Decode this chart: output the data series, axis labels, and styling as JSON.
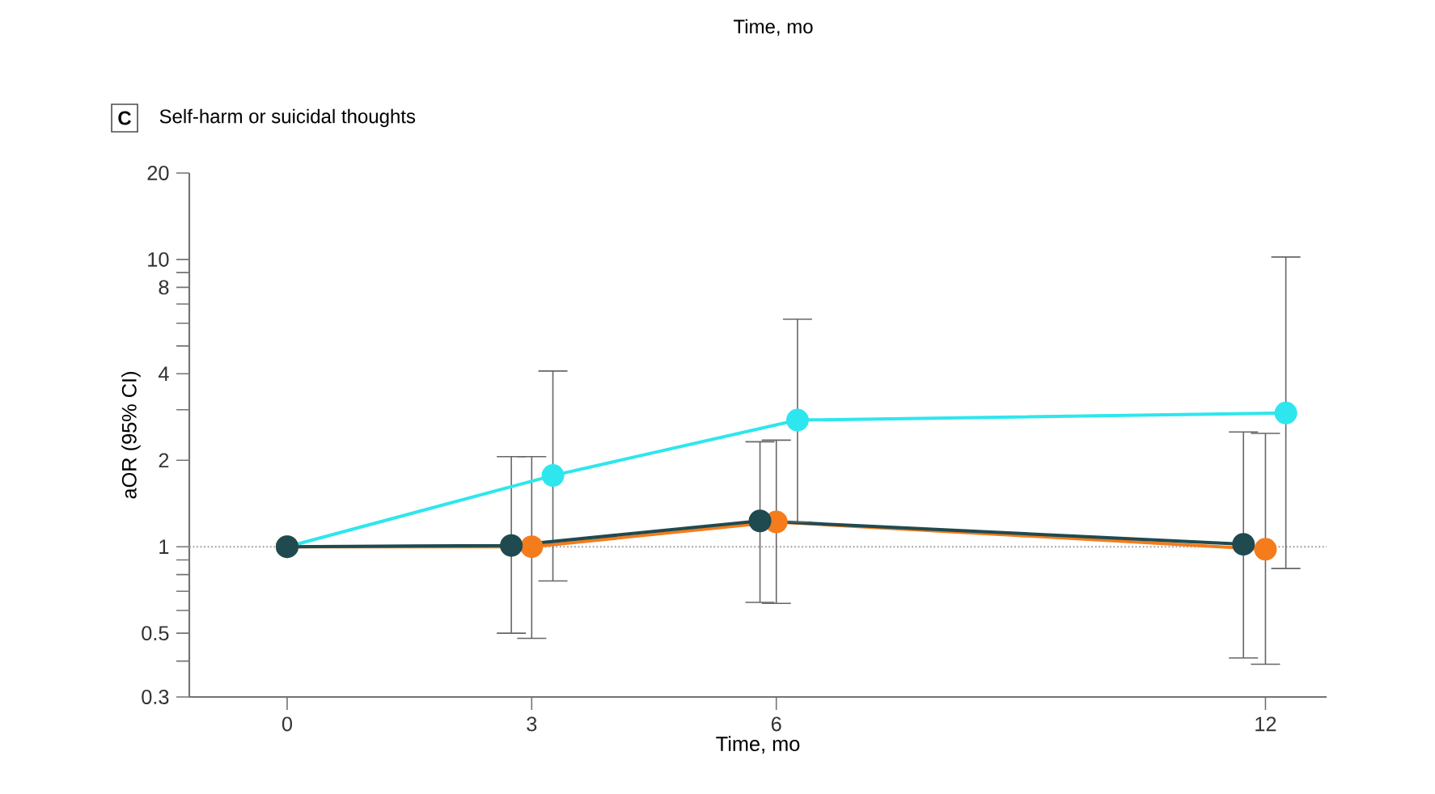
{
  "chart_data": {
    "type": "line",
    "title": "Self-harm or suicidal thoughts",
    "xlabel": "Time, mo",
    "ylabel": "aOR (95% CI)",
    "annotations": [
      "Time, mo",
      "C"
    ],
    "log": "y",
    "marker": "circle",
    "line_style": "solid",
    "xlim": [
      -1.2,
      12.75
    ],
    "xticks": [
      0,
      3,
      6,
      12
    ],
    "ylim": [
      0.3,
      20
    ],
    "yticks": [
      0.3,
      {
        "value": 0.4,
        "label": null
      },
      0.5,
      {
        "value": 0.6,
        "label": null
      },
      {
        "value": 0.7,
        "label": null
      },
      {
        "value": 0.8,
        "label": null
      },
      {
        "value": 0.9,
        "label": null
      },
      1,
      2,
      {
        "value": 3,
        "label": null
      },
      4,
      {
        "value": 5,
        "label": null
      },
      {
        "value": 6,
        "label": null
      },
      {
        "value": 7,
        "label": null
      },
      8,
      {
        "value": 9,
        "label": null
      },
      10,
      20
    ],
    "ref_lines": [
      {
        "axis": "y",
        "value": 1,
        "color": "#a0a0a0",
        "line_style": "dotted"
      }
    ],
    "series": [
      {
        "color": "#2ee6ee",
        "x": [
          0,
          3.26,
          6.26,
          12.25
        ],
        "values": [
          1,
          1.77,
          2.76,
          2.92
        ],
        "errors": [
          null,
          [
            0.76,
            4.09
          ],
          [
            1.22,
            6.2
          ],
          [
            0.84,
            10.2
          ]
        ]
      },
      {
        "color": "#f47c1c",
        "x": [
          0,
          3,
          6,
          12
        ],
        "values": [
          1,
          1.0,
          1.22,
          0.98
        ],
        "errors": [
          null,
          [
            0.48,
            2.06
          ],
          [
            0.635,
            2.35
          ],
          [
            0.39,
            2.48
          ]
        ]
      },
      {
        "color": "#1f4a4f",
        "x": [
          0,
          2.75,
          5.8,
          11.73
        ],
        "values": [
          1,
          1.01,
          1.23,
          1.02
        ],
        "errors": [
          null,
          [
            0.5,
            2.06
          ],
          [
            0.64,
            2.32
          ],
          [
            0.41,
            2.51
          ]
        ]
      }
    ]
  }
}
